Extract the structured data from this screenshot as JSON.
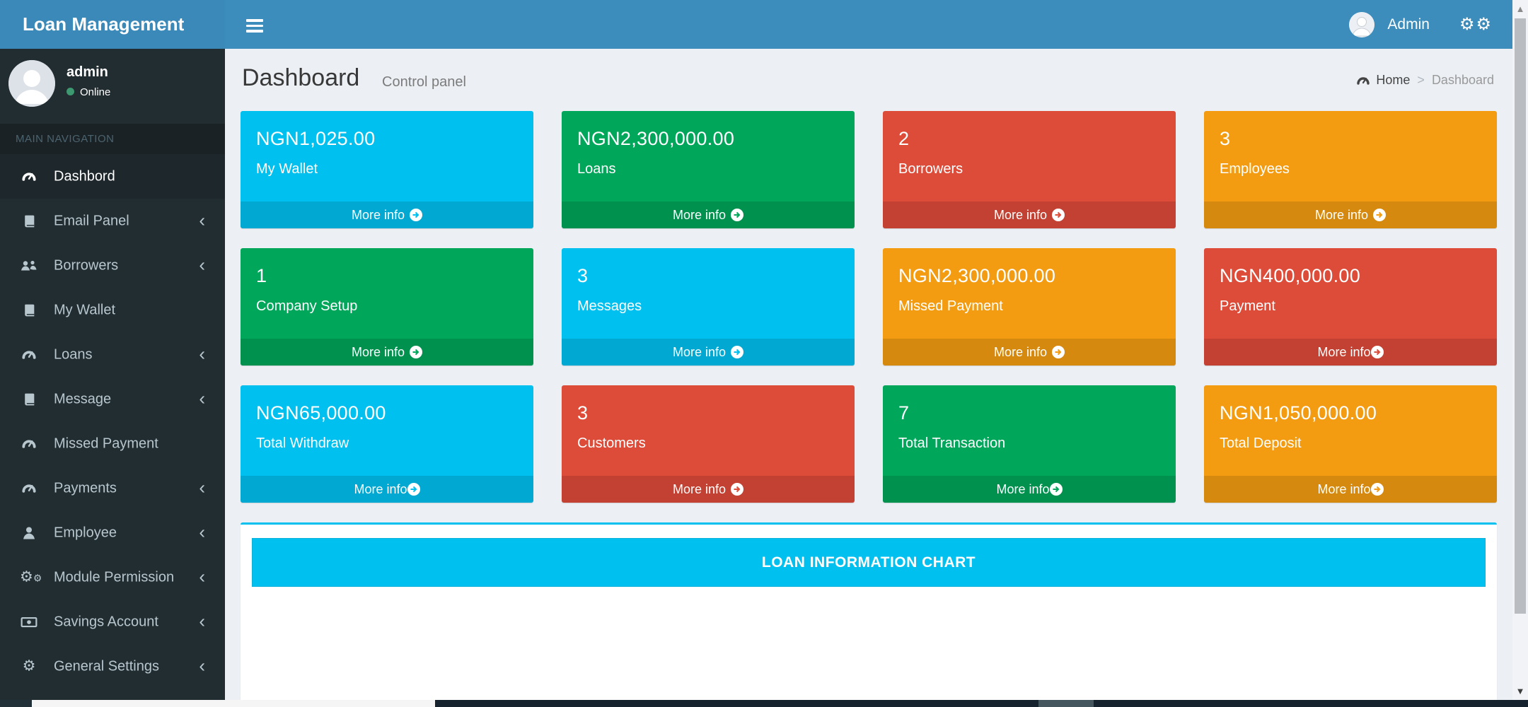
{
  "app": {
    "title": "Loan Management"
  },
  "navbar": {
    "user_name": "Admin"
  },
  "sidebar": {
    "user": {
      "name": "admin",
      "status": "Online"
    },
    "section_label": "MAIN NAVIGATION",
    "items": [
      {
        "label": "Dashbord",
        "icon": "dashboard-icon",
        "active": true,
        "chevron": false
      },
      {
        "label": "Email Panel",
        "icon": "book-icon",
        "active": false,
        "chevron": true
      },
      {
        "label": "Borrowers",
        "icon": "users-icon",
        "active": false,
        "chevron": true
      },
      {
        "label": "My Wallet",
        "icon": "book-icon",
        "active": false,
        "chevron": false
      },
      {
        "label": "Loans",
        "icon": "dashboard-icon",
        "active": false,
        "chevron": true
      },
      {
        "label": "Message",
        "icon": "book-icon",
        "active": false,
        "chevron": true
      },
      {
        "label": "Missed Payment",
        "icon": "dashboard-icon",
        "active": false,
        "chevron": false
      },
      {
        "label": "Payments",
        "icon": "dashboard-icon",
        "active": false,
        "chevron": true
      },
      {
        "label": "Employee",
        "icon": "user-icon",
        "active": false,
        "chevron": true
      },
      {
        "label": "Module Permission",
        "icon": "gears-icon",
        "active": false,
        "chevron": true
      },
      {
        "label": "Savings Account",
        "icon": "money-icon",
        "active": false,
        "chevron": true
      },
      {
        "label": "General Settings",
        "icon": "gear-icon",
        "active": false,
        "chevron": true
      }
    ]
  },
  "content": {
    "title": "Dashboard",
    "subtitle": "Control panel",
    "breadcrumb": {
      "home": "Home",
      "current": "Dashboard"
    },
    "boxes": [
      {
        "value": "NGN1,025.00",
        "label": "My Wallet",
        "color": "aqua",
        "more_info": "More info",
        "spaced": true
      },
      {
        "value": "NGN2,300,000.00",
        "label": "Loans",
        "color": "green",
        "more_info": "More info",
        "spaced": true
      },
      {
        "value": "2",
        "label": "Borrowers",
        "color": "red",
        "more_info": "More info",
        "spaced": true
      },
      {
        "value": "3",
        "label": "Employees",
        "color": "yellow",
        "more_info": "More info",
        "spaced": true
      },
      {
        "value": "1",
        "label": "Company Setup",
        "color": "green",
        "more_info": "More info",
        "spaced": true
      },
      {
        "value": "3",
        "label": "Messages",
        "color": "aqua",
        "more_info": "More info",
        "spaced": true
      },
      {
        "value": "NGN2,300,000.00",
        "label": "Missed Payment",
        "color": "yellow",
        "more_info": "More info",
        "spaced": true
      },
      {
        "value": "NGN400,000.00",
        "label": "Payment",
        "color": "red",
        "more_info": "More info",
        "spaced": false
      },
      {
        "value": "NGN65,000.00",
        "label": "Total Withdraw",
        "color": "aqua",
        "more_info": "More info",
        "spaced": false
      },
      {
        "value": "3",
        "label": "Customers",
        "color": "red",
        "more_info": "More info",
        "spaced": true
      },
      {
        "value": "7",
        "label": "Total Transaction",
        "color": "green",
        "more_info": "More info",
        "spaced": false
      },
      {
        "value": "NGN1,050,000.00",
        "label": "Total Deposit",
        "color": "yellow",
        "more_info": "More info",
        "spaced": false
      }
    ],
    "chart": {
      "header": "LOAN INFORMATION CHART"
    }
  },
  "colors": {
    "navbar": "#3c8dbc",
    "sidebar": "#222d32",
    "aqua": "#00c0ef",
    "green": "#00a65a",
    "red": "#dd4b39",
    "yellow": "#f39c12",
    "content_bg": "#ecf0f5"
  }
}
